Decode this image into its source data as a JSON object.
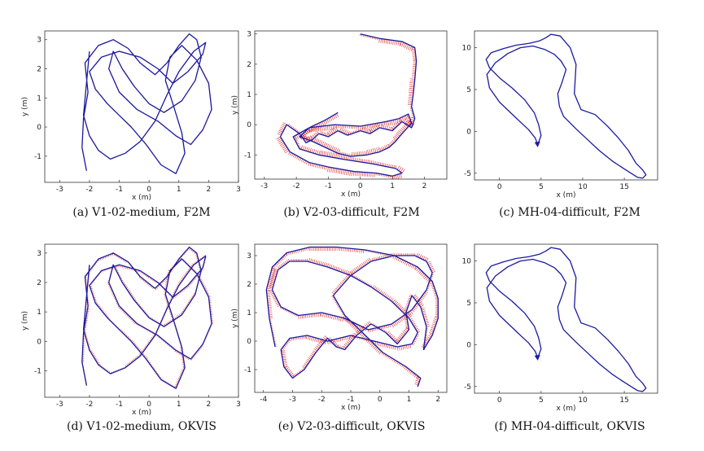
{
  "figure": {
    "chart_data": [
      {
        "id": "a",
        "type": "line",
        "caption": "(a) V1-02-medium, F2M",
        "xlabel": "x (m)",
        "ylabel": "y (m)",
        "xlim": [
          -3.5,
          3.0
        ],
        "ylim": [
          -1.9,
          3.3
        ],
        "xticks": [
          -3,
          -2,
          -1,
          0,
          1,
          2,
          3
        ],
        "yticks": [
          -1,
          0,
          1,
          2,
          3
        ],
        "series": [
          {
            "x": [
              -2.1,
              -2.25,
              -2.2,
              -2.05,
              -2.15,
              -1.7,
              -1.2,
              -0.7,
              -0.3,
              0.2,
              0.6,
              1.0,
              1.35,
              1.6,
              1.75,
              1.55,
              1.1,
              0.5,
              0.0,
              -0.5,
              -0.9,
              -1.2,
              -1.35,
              -1.0,
              -0.4,
              0.3,
              0.9,
              1.4,
              1.8,
              2.1,
              2.0,
              1.6,
              1.1,
              0.7,
              0.55,
              0.8,
              1.1,
              1.2,
              0.9,
              0.4,
              -0.1,
              -0.6,
              -1.0,
              -1.4,
              -1.8,
              -2.0,
              -1.6,
              -1.0,
              -0.3,
              0.3,
              0.8,
              1.3,
              1.8,
              1.9,
              1.5,
              1.0,
              0.6,
              0.2,
              -0.3,
              -0.8,
              -1.3,
              -1.7,
              -2.0,
              -2.2,
              -2.0
            ],
            "y": [
              -1.5,
              -0.7,
              0.3,
              1.2,
              2.2,
              2.8,
              3.0,
              2.7,
              2.2,
              1.8,
              2.2,
              2.8,
              3.2,
              3.0,
              2.4,
              1.6,
              0.9,
              0.5,
              0.8,
              1.4,
              2.0,
              2.6,
              2.0,
              1.2,
              0.6,
              0.2,
              -0.3,
              -0.6,
              -0.1,
              0.6,
              1.5,
              2.3,
              2.8,
              2.4,
              1.6,
              0.8,
              -0.2,
              -0.9,
              -1.6,
              -1.3,
              -0.6,
              0.0,
              0.4,
              0.8,
              1.3,
              1.9,
              2.4,
              2.6,
              2.4,
              2.0,
              1.5,
              1.9,
              2.5,
              2.9,
              2.6,
              1.9,
              1.1,
              0.2,
              -0.5,
              -0.9,
              -1.1,
              -0.8,
              -0.3,
              0.4,
              2.6
            ]
          }
        ]
      },
      {
        "id": "b",
        "type": "line",
        "caption": "(b) V2-03-difficult, F2M",
        "xlabel": "x (m)",
        "ylabel": "y (m)",
        "xlim": [
          -3.3,
          2.7
        ],
        "ylim": [
          -1.8,
          3.1
        ],
        "xticks": [
          -3,
          -2,
          -1,
          0,
          1,
          2
        ],
        "yticks": [
          -1,
          0,
          1,
          2,
          3
        ],
        "series": [
          {
            "x": [
              0.0,
              0.6,
              1.3,
              1.7,
              1.75,
              1.7,
              1.65,
              1.6,
              1.7,
              1.6,
              1.3,
              1.0,
              0.6,
              0.3,
              0.0,
              -0.4,
              -0.7,
              -1.0,
              -1.3,
              -1.5,
              -1.7,
              -1.9,
              -2.3,
              -2.5,
              -2.2,
              -1.6,
              -1.0,
              -0.2,
              0.5,
              1.0,
              1.3,
              1.1,
              0.4,
              -0.5,
              -1.3,
              -1.9,
              -2.1,
              -1.6,
              -0.8,
              0.0,
              0.8,
              1.2,
              1.5,
              1.6,
              1.3,
              1.1,
              0.9,
              0.6,
              0.2,
              -0.3,
              -0.7,
              -1.1,
              -1.5,
              -1.9,
              -1.6,
              -1.1,
              -0.7
            ],
            "y": [
              3.0,
              2.85,
              2.75,
              2.55,
              2.1,
              1.5,
              1.0,
              0.6,
              0.2,
              -0.1,
              0.1,
              -0.2,
              -0.1,
              -0.3,
              -0.2,
              -0.35,
              -0.2,
              -0.4,
              -0.3,
              -0.5,
              -0.6,
              -0.3,
              0.0,
              -0.4,
              -0.9,
              -1.25,
              -1.4,
              -1.55,
              -1.6,
              -1.7,
              -1.6,
              -1.45,
              -1.3,
              -1.15,
              -1.0,
              -0.8,
              -0.4,
              -0.1,
              0.0,
              -0.05,
              0.1,
              0.2,
              0.35,
              0.05,
              -0.3,
              -0.55,
              -0.75,
              -0.9,
              -1.0,
              -1.05,
              -0.95,
              -0.75,
              -0.55,
              -0.4,
              -0.1,
              0.15,
              0.4
            ]
          }
        ]
      },
      {
        "id": "c",
        "type": "line",
        "caption": "(c) MH-04-difficult, F2M",
        "xlabel": "x (m)",
        "ylabel": "",
        "xlim": [
          -3.0,
          19.0
        ],
        "ylim": [
          -5.8,
          12.0
        ],
        "xticks": [
          0,
          5,
          10,
          15
        ],
        "yticks": [
          -5,
          0,
          5,
          10
        ],
        "series": [
          {
            "x": [
              4.6,
              5.0,
              4.7,
              4.2,
              3.0,
              1.5,
              0.0,
              -1.2,
              -1.6,
              -1.0,
              0.5,
              2.0,
              3.5,
              4.8,
              5.6,
              6.2,
              7.3,
              8.5,
              9.2,
              9.0,
              9.8,
              11.5,
              13.0,
              14.3,
              15.5,
              16.4,
              17.2,
              17.6,
              17.2,
              16.6,
              15.0,
              13.5,
              12.0,
              10.6,
              9.2,
              7.7,
              7.2,
              7.0,
              7.5,
              8.0,
              7.4,
              6.6,
              5.4,
              4.0,
              2.5,
              1.0,
              -0.5,
              -1.5,
              -1.2,
              0.0,
              2.0,
              3.5,
              4.3,
              4.6
            ],
            "y": [
              -1.6,
              -0.5,
              0.8,
              2.2,
              3.8,
              5.2,
              6.4,
              7.6,
              8.6,
              9.4,
              9.9,
              10.3,
              10.5,
              10.8,
              11.2,
              11.6,
              11.4,
              10.0,
              8.0,
              4.5,
              2.6,
              2.0,
              0.6,
              -0.8,
              -2.3,
              -3.8,
              -4.6,
              -5.2,
              -5.6,
              -5.5,
              -4.5,
              -3.5,
              -2.3,
              -1.0,
              0.3,
              1.8,
              3.0,
              4.5,
              5.8,
              7.4,
              8.4,
              9.2,
              9.8,
              10.2,
              10.0,
              9.3,
              8.2,
              6.8,
              5.2,
              3.5,
              1.6,
              0.2,
              -0.8,
              -1.6
            ]
          }
        ]
      },
      {
        "id": "d",
        "type": "line",
        "caption": "(d) V1-02-medium, OKVIS",
        "xlabel": "x (m)",
        "ylabel": "y (m)",
        "xlim": [
          -3.5,
          3.0
        ],
        "ylim": [
          -1.9,
          3.3
        ],
        "xticks": [
          -3,
          -2,
          -1,
          0,
          1,
          2,
          3
        ],
        "yticks": [
          -1,
          0,
          1,
          2,
          3
        ],
        "series": [
          {
            "x": [
              -2.1,
              -2.25,
              -2.2,
              -2.05,
              -2.15,
              -1.7,
              -1.2,
              -0.7,
              -0.3,
              0.2,
              0.6,
              1.0,
              1.35,
              1.6,
              1.75,
              1.55,
              1.1,
              0.5,
              0.0,
              -0.5,
              -0.9,
              -1.2,
              -1.35,
              -1.0,
              -0.4,
              0.3,
              0.9,
              1.4,
              1.8,
              2.1,
              2.0,
              1.6,
              1.1,
              0.7,
              0.55,
              0.8,
              1.1,
              1.2,
              0.9,
              0.4,
              -0.1,
              -0.6,
              -1.0,
              -1.4,
              -1.8,
              -2.0,
              -1.6,
              -1.0,
              -0.3,
              0.3,
              0.8,
              1.3,
              1.8,
              1.9,
              1.5,
              1.0,
              0.6,
              0.2,
              -0.3,
              -0.8,
              -1.3,
              -1.7,
              -2.0,
              -2.2,
              -2.0
            ],
            "y": [
              -1.5,
              -0.7,
              0.3,
              1.2,
              2.2,
              2.8,
              3.0,
              2.7,
              2.2,
              1.8,
              2.2,
              2.8,
              3.2,
              3.0,
              2.4,
              1.6,
              0.9,
              0.5,
              0.8,
              1.4,
              2.0,
              2.6,
              2.0,
              1.2,
              0.6,
              0.2,
              -0.3,
              -0.6,
              -0.1,
              0.6,
              1.5,
              2.3,
              2.8,
              2.4,
              1.6,
              0.8,
              -0.2,
              -0.9,
              -1.6,
              -1.3,
              -0.6,
              0.0,
              0.4,
              0.8,
              1.3,
              1.9,
              2.4,
              2.6,
              2.4,
              2.0,
              1.5,
              1.9,
              2.5,
              2.9,
              2.6,
              1.9,
              1.1,
              0.2,
              -0.5,
              -0.9,
              -1.1,
              -0.8,
              -0.3,
              0.4,
              2.6
            ]
          }
        ]
      },
      {
        "id": "e",
        "type": "line",
        "caption": "(e) V2-03-difficult, OKVIS",
        "xlabel": "x (m)",
        "ylabel": "y (m)",
        "xlim": [
          -4.3,
          2.3
        ],
        "ylim": [
          -1.8,
          3.4
        ],
        "xticks": [
          -4,
          -3,
          -2,
          -1,
          0,
          1,
          2
        ],
        "yticks": [
          -1,
          0,
          1,
          2,
          3
        ],
        "series": [
          {
            "x": [
              -3.6,
              -3.8,
              -3.9,
              -3.7,
              -3.2,
              -2.4,
              -1.5,
              -0.5,
              0.5,
              1.3,
              1.8,
              2.0,
              2.0,
              1.8,
              1.5,
              1.6,
              1.4,
              1.1,
              0.9,
              1.0,
              0.6,
              0.2,
              -0.3,
              -0.8,
              -1.2,
              -1.5,
              -1.8,
              -2.2,
              -2.6,
              -3.0,
              -3.3,
              -3.4,
              -3.1,
              -2.5,
              -1.8,
              -1.0,
              -0.2,
              0.6,
              1.1,
              1.3,
              1.0,
              0.4,
              -0.3,
              -1.0,
              -1.8,
              -2.5,
              -3.1,
              -3.5,
              -3.7,
              -3.4,
              -2.8,
              -2.0,
              -1.2,
              -0.4,
              0.4,
              1.1,
              1.6,
              1.8,
              1.6,
              1.2,
              0.5,
              -0.3,
              -1.0,
              -1.6,
              -1.2,
              -0.6,
              0.1,
              0.9,
              1.4,
              1.3
            ],
            "y": [
              -0.2,
              0.8,
              1.8,
              2.6,
              3.1,
              3.3,
              3.3,
              3.2,
              3.0,
              2.6,
              2.1,
              1.5,
              0.8,
              0.2,
              -0.3,
              0.5,
              1.2,
              1.6,
              1.0,
              0.4,
              -0.1,
              0.3,
              0.6,
              0.2,
              -0.3,
              -0.2,
              0.1,
              -0.4,
              -1.0,
              -1.3,
              -0.9,
              -0.3,
              0.1,
              0.2,
              0.0,
              0.2,
              0.0,
              -0.2,
              -0.1,
              0.3,
              0.8,
              1.4,
              1.9,
              2.3,
              2.6,
              2.8,
              2.8,
              2.5,
              1.8,
              1.2,
              0.9,
              1.0,
              0.8,
              0.4,
              0.6,
              1.1,
              1.8,
              2.4,
              2.8,
              3.0,
              3.0,
              2.8,
              2.3,
              1.6,
              0.9,
              0.3,
              -0.4,
              -0.9,
              -1.3,
              -1.6
            ]
          }
        ]
      },
      {
        "id": "f",
        "type": "line",
        "caption": "(f) MH-04-difficult, OKVIS",
        "xlabel": "x (m)",
        "ylabel": "",
        "xlim": [
          -3.0,
          19.0
        ],
        "ylim": [
          -5.8,
          12.0
        ],
        "xticks": [
          0,
          5,
          10,
          15
        ],
        "yticks": [
          -5,
          0,
          5,
          10
        ],
        "series": [
          {
            "x": [
              4.6,
              5.0,
              4.7,
              4.2,
              3.0,
              1.5,
              0.0,
              -1.2,
              -1.6,
              -1.0,
              0.5,
              2.0,
              3.5,
              4.8,
              5.6,
              6.2,
              7.3,
              8.5,
              9.2,
              9.0,
              9.8,
              11.5,
              13.0,
              14.3,
              15.5,
              16.4,
              17.2,
              17.6,
              17.2,
              16.6,
              15.0,
              13.5,
              12.0,
              10.6,
              9.2,
              7.7,
              7.2,
              7.0,
              7.5,
              8.0,
              7.4,
              6.6,
              5.4,
              4.0,
              2.5,
              1.0,
              -0.5,
              -1.5,
              -1.2,
              0.0,
              2.0,
              3.5,
              4.3,
              4.6
            ],
            "y": [
              -1.6,
              -0.5,
              0.8,
              2.2,
              3.8,
              5.2,
              6.4,
              7.6,
              8.6,
              9.4,
              9.9,
              10.3,
              10.5,
              10.8,
              11.2,
              11.6,
              11.4,
              10.0,
              8.0,
              4.5,
              2.6,
              2.0,
              0.6,
              -0.8,
              -2.3,
              -3.8,
              -4.6,
              -5.2,
              -5.6,
              -5.5,
              -4.5,
              -3.5,
              -2.3,
              -1.0,
              0.3,
              1.8,
              3.0,
              4.5,
              5.8,
              7.4,
              8.4,
              9.2,
              9.8,
              10.2,
              10.0,
              9.3,
              8.2,
              6.8,
              5.2,
              3.5,
              1.6,
              0.2,
              -0.8,
              -1.6
            ]
          }
        ]
      }
    ],
    "colors": {
      "ground_truth": "#1a1aa0",
      "error": "#e02020"
    }
  }
}
